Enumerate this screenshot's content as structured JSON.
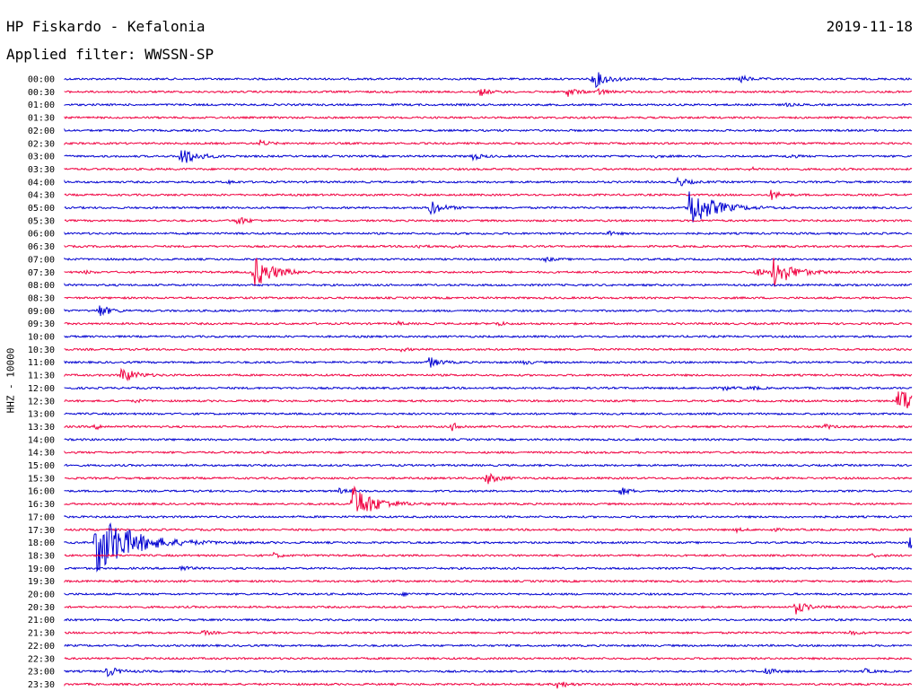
{
  "header": {
    "station_title": "HP Fiskardo - Kefalonia",
    "date": "2019-11-18",
    "filter_label": "Applied filter: WWSSN-SP"
  },
  "chart_data": {
    "type": "line",
    "title": "HP Fiskardo - Kefalonia",
    "date": "2019-11-18",
    "filter": "WWSSN-SP",
    "ylabel": "HHZ - 10000",
    "colors": {
      "even_rows": "#0000d0",
      "odd_rows": "#f00040"
    },
    "rows": [
      "00:00",
      "00:30",
      "01:00",
      "01:30",
      "02:00",
      "02:30",
      "03:00",
      "03:30",
      "04:00",
      "04:30",
      "05:00",
      "05:30",
      "06:00",
      "06:30",
      "07:00",
      "07:30",
      "08:00",
      "08:30",
      "09:00",
      "09:30",
      "10:00",
      "10:30",
      "11:00",
      "11:30",
      "12:00",
      "12:30",
      "13:00",
      "13:30",
      "14:00",
      "14:30",
      "15:00",
      "15:30",
      "16:00",
      "16:30",
      "17:00",
      "17:30",
      "18:00",
      "18:30",
      "19:00",
      "19:30",
      "20:00",
      "20:30",
      "21:00",
      "21:30",
      "22:00",
      "22:30",
      "23:00",
      "23:30"
    ],
    "x_range_minutes": [
      0,
      30
    ],
    "events": [
      {
        "row": 0,
        "minute": 18.7,
        "amplitude": 1.2
      },
      {
        "row": 0,
        "minute": 23.9,
        "amplitude": 0.5
      },
      {
        "row": 1,
        "minute": 14.7,
        "amplitude": 0.5
      },
      {
        "row": 1,
        "minute": 17.8,
        "amplitude": 0.6
      },
      {
        "row": 1,
        "minute": 18.9,
        "amplitude": 0.4
      },
      {
        "row": 2,
        "minute": 25.5,
        "amplitude": 0.2
      },
      {
        "row": 5,
        "minute": 6.9,
        "amplitude": 0.4
      },
      {
        "row": 6,
        "minute": 4.1,
        "amplitude": 1.3
      },
      {
        "row": 6,
        "minute": 14.4,
        "amplitude": 0.5
      },
      {
        "row": 6,
        "minute": 20.8,
        "amplitude": 0.2
      },
      {
        "row": 6,
        "minute": 25.6,
        "amplitude": 0.3
      },
      {
        "row": 7,
        "minute": 24.3,
        "amplitude": 0.2
      },
      {
        "row": 8,
        "minute": 5.8,
        "amplitude": 0.2
      },
      {
        "row": 8,
        "minute": 21.7,
        "amplitude": 0.6
      },
      {
        "row": 9,
        "minute": 25.0,
        "amplitude": 0.6
      },
      {
        "row": 10,
        "minute": 12.9,
        "amplitude": 1.0
      },
      {
        "row": 10,
        "minute": 22.1,
        "amplitude": 2.6
      },
      {
        "row": 11,
        "minute": 6.1,
        "amplitude": 0.6
      },
      {
        "row": 12,
        "minute": 19.2,
        "amplitude": 0.3
      },
      {
        "row": 13,
        "minute": 12.4,
        "amplitude": 0.3
      },
      {
        "row": 13,
        "minute": 13.7,
        "amplitude": 0.2
      },
      {
        "row": 14,
        "minute": 17.0,
        "amplitude": 0.3
      },
      {
        "row": 15,
        "minute": 0.7,
        "amplitude": 0.2
      },
      {
        "row": 15,
        "minute": 6.7,
        "amplitude": 2.0
      },
      {
        "row": 15,
        "minute": 24.4,
        "amplitude": 0.6
      },
      {
        "row": 15,
        "minute": 25.1,
        "amplitude": 1.9
      },
      {
        "row": 18,
        "minute": 1.2,
        "amplitude": 0.8
      },
      {
        "row": 19,
        "minute": 11.8,
        "amplitude": 0.2
      },
      {
        "row": 19,
        "minute": 15.3,
        "amplitude": 0.3
      },
      {
        "row": 21,
        "minute": 11.9,
        "amplitude": 0.2
      },
      {
        "row": 22,
        "minute": 12.9,
        "amplitude": 0.7
      },
      {
        "row": 22,
        "minute": 16.2,
        "amplitude": 0.3
      },
      {
        "row": 23,
        "minute": 2.0,
        "amplitude": 1.1
      },
      {
        "row": 24,
        "minute": 23.3,
        "amplitude": 0.3
      },
      {
        "row": 24,
        "minute": 24.3,
        "amplitude": 0.3
      },
      {
        "row": 25,
        "minute": 2.5,
        "amplitude": 0.2
      },
      {
        "row": 25,
        "minute": 29.5,
        "amplitude": 1.9
      },
      {
        "row": 27,
        "minute": 1.1,
        "amplitude": 0.3
      },
      {
        "row": 27,
        "minute": 13.7,
        "amplitude": 0.5
      },
      {
        "row": 27,
        "minute": 26.9,
        "amplitude": 0.3
      },
      {
        "row": 31,
        "minute": 14.9,
        "amplitude": 0.8
      },
      {
        "row": 32,
        "minute": 9.7,
        "amplitude": 0.3
      },
      {
        "row": 32,
        "minute": 19.7,
        "amplitude": 0.5
      },
      {
        "row": 33,
        "minute": 10.2,
        "amplitude": 2.3
      },
      {
        "row": 35,
        "minute": 23.8,
        "amplitude": 0.2
      },
      {
        "row": 35,
        "minute": 25.0,
        "amplitude": 0.2
      },
      {
        "row": 36,
        "minute": 1.1,
        "amplitude": 4.2
      },
      {
        "row": 36,
        "minute": 29.9,
        "amplitude": 0.8
      },
      {
        "row": 37,
        "minute": 7.4,
        "amplitude": 0.3
      },
      {
        "row": 37,
        "minute": 28.6,
        "amplitude": 0.2
      },
      {
        "row": 38,
        "minute": 4.1,
        "amplitude": 0.4
      },
      {
        "row": 40,
        "minute": 12.0,
        "amplitude": 0.2
      },
      {
        "row": 41,
        "minute": 25.9,
        "amplitude": 0.8
      },
      {
        "row": 43,
        "minute": 4.9,
        "amplitude": 0.3
      },
      {
        "row": 43,
        "minute": 27.8,
        "amplitude": 0.3
      },
      {
        "row": 46,
        "minute": 1.5,
        "amplitude": 0.7
      },
      {
        "row": 46,
        "minute": 24.8,
        "amplitude": 0.5
      },
      {
        "row": 46,
        "minute": 28.3,
        "amplitude": 0.3
      },
      {
        "row": 47,
        "minute": 17.4,
        "amplitude": 0.6
      }
    ]
  }
}
